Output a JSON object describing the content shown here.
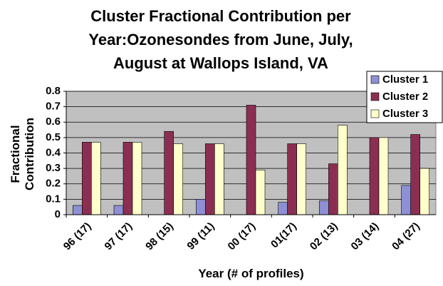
{
  "chart_data": {
    "type": "bar",
    "title": "Cluster Fractional Contribution per Year:Ozonesondes from June, July, August at Wallops Island, VA",
    "x_label": "Year (# of profiles)",
    "y_label": "Fractional Contribution",
    "categories": [
      "96 (17)",
      "97 (17)",
      "98 (15)",
      "99 (11)",
      "00 (17)",
      "01(17)",
      "02 (13)",
      "03 (14)",
      "04 (27)"
    ],
    "series": [
      {
        "name": "Cluster 1",
        "color": "#8e8fd4",
        "values": [
          0.06,
          0.06,
          0,
          0.1,
          0,
          0.08,
          0.09,
          0,
          0.19
        ]
      },
      {
        "name": "Cluster 2",
        "color": "#8b2f52",
        "values": [
          0.47,
          0.47,
          0.54,
          0.46,
          0.71,
          0.46,
          0.33,
          0.5,
          0.52
        ]
      },
      {
        "name": "Cluster 3",
        "color": "#ffffcc",
        "values": [
          0.47,
          0.47,
          0.46,
          0.46,
          0.29,
          0.46,
          0.58,
          0.5,
          0.3
        ]
      }
    ],
    "ylim": [
      0,
      0.8
    ],
    "yticks": [
      0,
      0.1,
      0.2,
      0.3,
      0.4,
      0.5,
      0.6,
      0.7,
      0.8
    ],
    "grid": true,
    "legend": "top-right"
  }
}
